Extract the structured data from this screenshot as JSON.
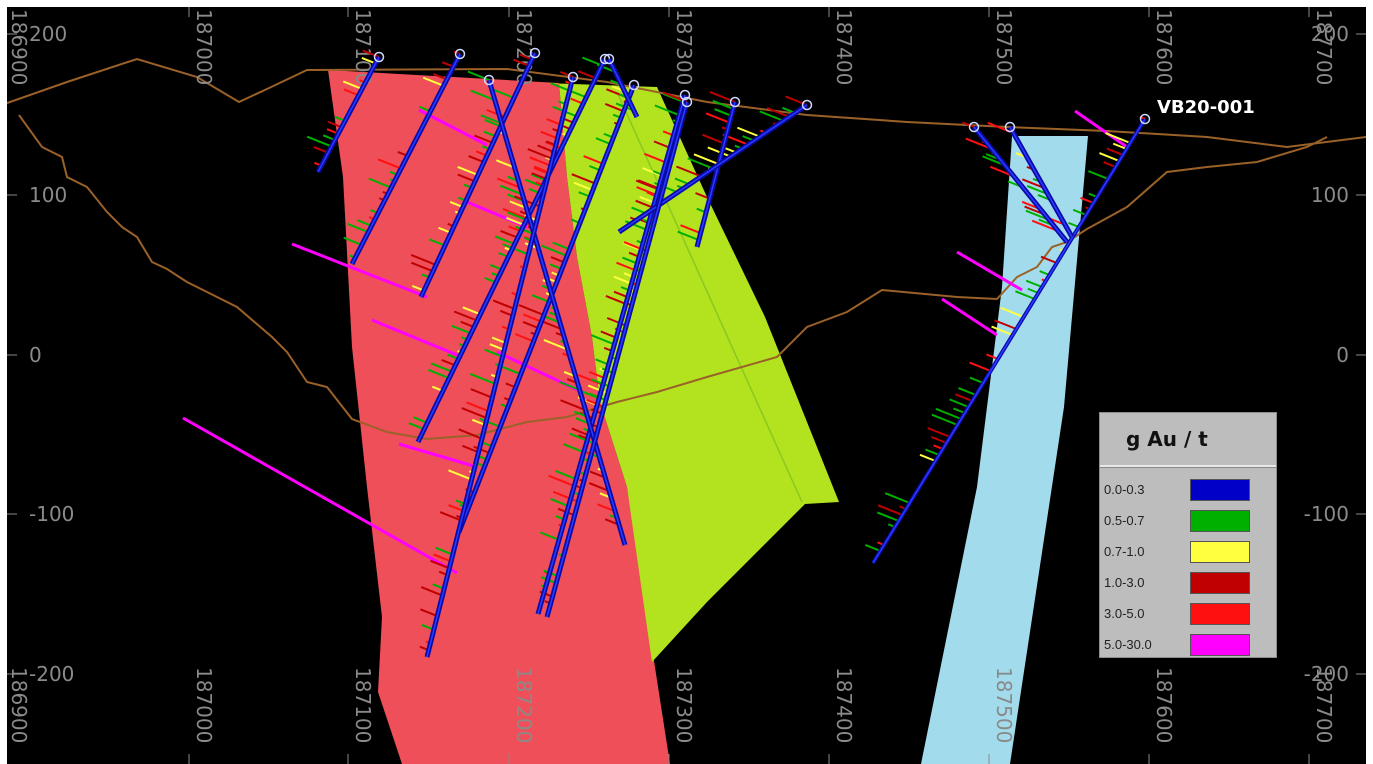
{
  "x_labels_top": [
    "186900",
    "187000",
    "187100",
    "187200",
    "187300",
    "187400",
    "187500",
    "187600",
    "187700"
  ],
  "x_labels_bottom": [
    "186900",
    "187000",
    "187100",
    "187200",
    "187300",
    "187400",
    "187500",
    "187600",
    "187700"
  ],
  "y_labels": [
    "200",
    "100",
    "0",
    "-100",
    "-200"
  ],
  "hole_label": "VB20-001",
  "legend": {
    "title": "g Au / t",
    "items": [
      {
        "label": "0.0-0.3",
        "color": "#0000c8"
      },
      {
        "label": "0.5-0.7",
        "color": "#00b000"
      },
      {
        "label": "0.7-1.0",
        "color": "#ffff40"
      },
      {
        "label": "1.0-3.0",
        "color": "#c00000"
      },
      {
        "label": "3.0-5.0",
        "color": "#ff1010"
      },
      {
        "label": "5.0-30.0",
        "color": "#ff00ff"
      }
    ]
  },
  "zone_colors": {
    "red_zone": "#ef4f58",
    "green_zone": "#b3e31f",
    "blue_zone": "#a2dcec",
    "topography": "#9a6128"
  }
}
